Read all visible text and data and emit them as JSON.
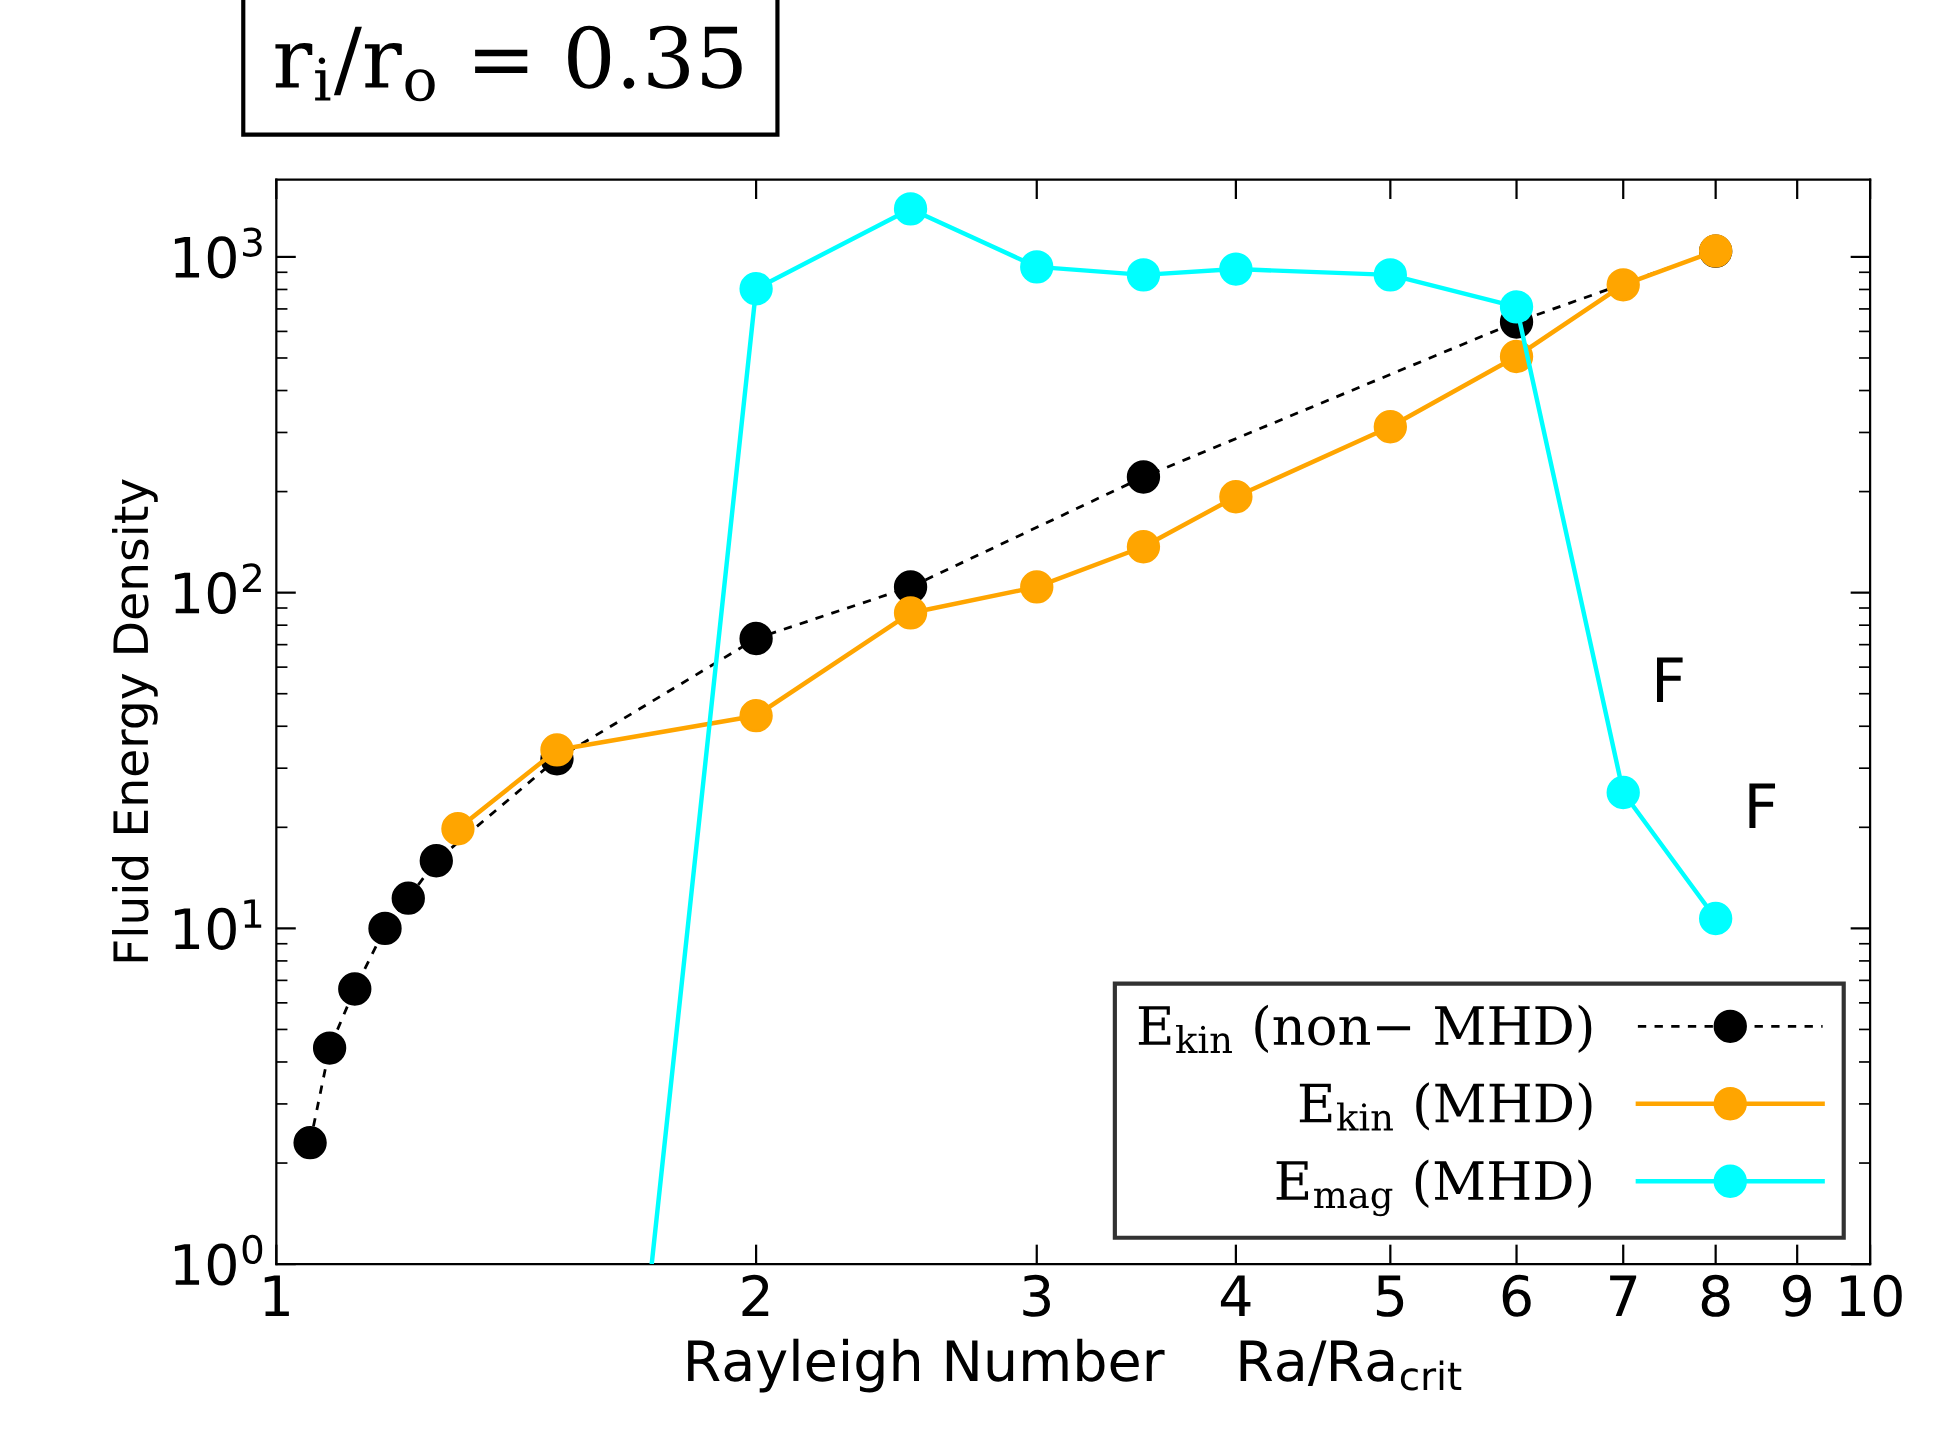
{
  "chart_data": {
    "type": "line",
    "title": "r$_{i}$/r$_{o}$ = 0.35",
    "xlabel": "Rayleigh Number    Ra/Ra$_{crit}$",
    "ylabel": "Fluid Energy Density",
    "series": [
      {
        "name": "E$_{kin}$ (non− MHD)",
        "color": "#000000",
        "line_style": "dashed",
        "x": [
          1.05,
          1.08,
          1.12,
          1.17,
          1.21,
          1.26,
          1.5,
          2,
          2.5,
          3.5,
          6,
          8
        ],
        "values": [
          2.3,
          4.4,
          6.6,
          10,
          12.3,
          15.9,
          32,
          73,
          104,
          221,
          640,
          1040
        ]
      },
      {
        "name": "E$_{kin}$ (MHD)",
        "color": "#ffa500",
        "line_style": "solid",
        "x": [
          1.3,
          1.5,
          2,
          2.5,
          3,
          3.5,
          4,
          5,
          6,
          7,
          8
        ],
        "values": [
          19.8,
          34,
          43,
          87,
          104,
          137,
          193,
          312,
          505,
          826,
          1042
        ]
      },
      {
        "name": "E$_{mag}$ (MHD)",
        "color": "#00ffff",
        "line_style": "solid",
        "x": [
          1.72,
          2,
          2.5,
          3,
          3.5,
          4,
          5,
          6,
          7,
          8
        ],
        "values": [
          1,
          804,
          1390,
          934,
          884,
          920,
          884,
          710,
          25.4,
          10.7
        ]
      }
    ],
    "annotations": [
      {
        "text": "F",
        "x": 7,
        "y": 25.4
      },
      {
        "text": "F",
        "x": 8,
        "y": 10.7
      }
    ],
    "log": "xy",
    "xlim": [
      1,
      10
    ],
    "ylim": [
      1,
      1700
    ],
    "xticks": [
      1,
      2,
      3,
      4,
      5,
      6,
      7,
      8,
      9,
      10
    ],
    "yticks": [
      {
        "value": 1,
        "label": "10$^{0}$"
      },
      {
        "value": 10,
        "label": "10$^{1}$"
      },
      {
        "value": 100,
        "label": "10$^{2}$"
      },
      {
        "value": 1000,
        "label": "10$^{3}$"
      }
    ],
    "grid": false,
    "legend": "bottom right",
    "marker": "circle"
  }
}
